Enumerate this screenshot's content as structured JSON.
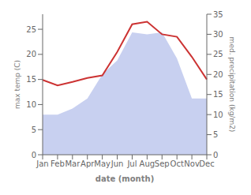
{
  "chart_data": {
    "type": "line",
    "xlabel": "date (month)",
    "ylabel": "max temp (C)",
    "y2label": "med. precipitation (kg/m2)",
    "categories": [
      "Jan",
      "Feb",
      "Mar",
      "Apr",
      "May",
      "Jun",
      "Jul",
      "Aug",
      "Sep",
      "Oct",
      "Nov",
      "Dec"
    ],
    "series": [
      {
        "type": "area",
        "color": "#c8d0f0",
        "axis": "y2",
        "values": [
          10.0,
          10.0,
          11.5,
          14.0,
          20.0,
          23.5,
          30.5,
          30.0,
          30.5,
          24.0,
          14.0,
          14.0
        ]
      },
      {
        "type": "line",
        "color": "#cc3333",
        "values": [
          14.9,
          13.8,
          14.5,
          15.3,
          15.8,
          20.5,
          26.0,
          26.5,
          24.0,
          23.5,
          19.5,
          15.0
        ]
      }
    ],
    "ylim": [
      0,
      28
    ],
    "yticks": [
      0,
      5,
      10,
      15,
      20,
      25
    ],
    "y2lim": [
      0,
      35
    ],
    "y2ticks": [
      0,
      5,
      10,
      15,
      20,
      25,
      30,
      35
    ],
    "grid": false
  }
}
